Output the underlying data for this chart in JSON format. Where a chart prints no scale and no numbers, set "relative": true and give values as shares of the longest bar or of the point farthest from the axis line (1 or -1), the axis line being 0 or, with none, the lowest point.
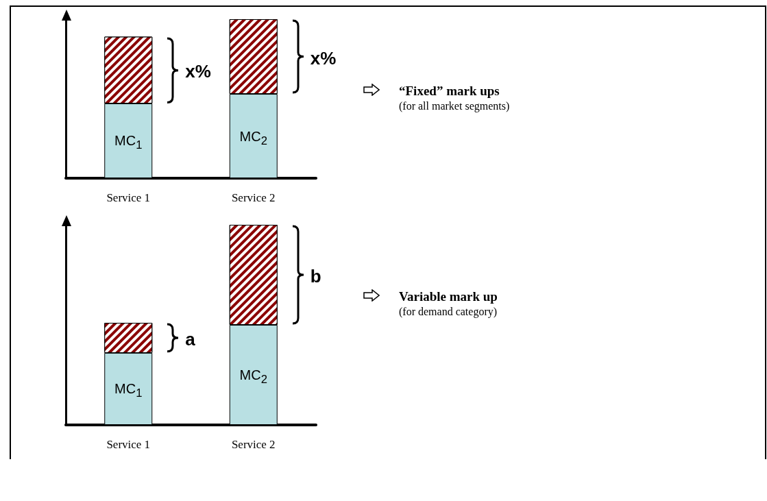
{
  "chart_data": [
    {
      "type": "bar",
      "stacked": true,
      "relative": true,
      "categories": [
        "Service 1",
        "Service 2"
      ],
      "series": [
        {
          "color": "#b9e0e3",
          "values": [
            0.47,
            0.53
          ]
        },
        {
          "color": "#8b0000",
          "values": [
            0.42,
            0.47
          ]
        }
      ],
      "annotations": [
        "MC$_{1}$",
        "MC$_{2}$",
        "x%",
        "x%",
        "“Fixed” mark ups",
        "(for all market segments)"
      ]
    },
    {
      "type": "bar",
      "stacked": true,
      "relative": true,
      "categories": [
        "Service 1",
        "Service 2"
      ],
      "series": [
        {
          "color": "#b9e0e3",
          "values": [
            0.36,
            0.5
          ]
        },
        {
          "color": "#8b0000",
          "values": [
            0.15,
            0.5
          ]
        }
      ],
      "annotations": [
        "MC$_{1}$",
        "MC$_{2}$",
        "a",
        "b",
        "Variable mark up",
        "(for demand category)"
      ]
    }
  ]
}
